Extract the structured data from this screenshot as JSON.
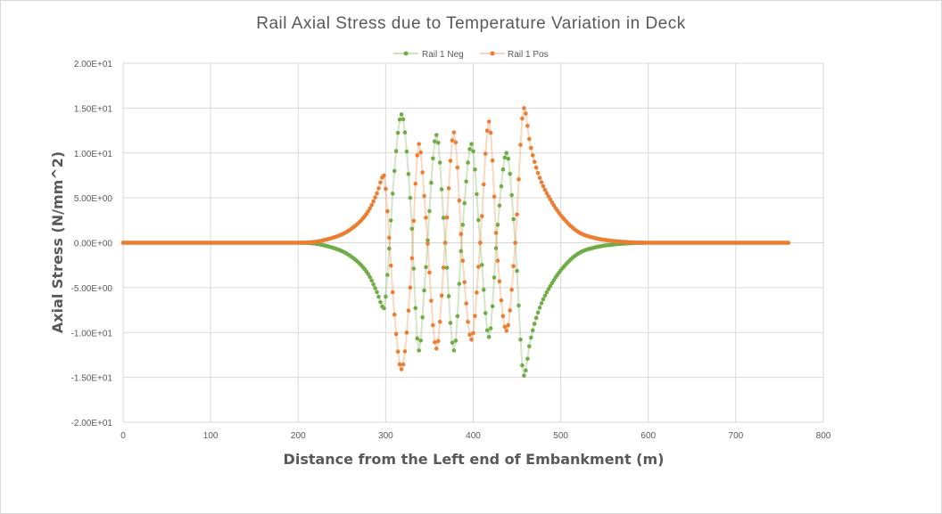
{
  "chart_data": {
    "type": "scatter",
    "title": "Rail Axial Stress due to Temperature Variation in Deck",
    "xlabel": "Distance from the Left end of Embankment (m)",
    "ylabel": "Axial Stress (N/mm^2)",
    "xlim": [
      0,
      800
    ],
    "ylim": [
      -20,
      20
    ],
    "x_ticks": [
      0,
      100,
      200,
      300,
      400,
      500,
      600,
      700,
      800
    ],
    "x_tick_labels": [
      "0",
      "100",
      "200",
      "300",
      "400",
      "500",
      "600",
      "700",
      "800"
    ],
    "y_ticks": [
      20,
      15,
      10,
      5,
      0,
      -5,
      -10,
      -15,
      -20
    ],
    "y_tick_labels": [
      "2.00E+01",
      "1.50E+01",
      "1.00E+01",
      "5.00E+00",
      "0.00E+00",
      "-5.00E+00",
      "-1.00E+01",
      "-1.50E+01",
      "-2.00E+01"
    ],
    "grid": true,
    "legend_position": "top",
    "x_range": [
      0,
      760
    ],
    "sample_step": 2,
    "series": [
      {
        "name": "Rail 1 Neg",
        "color": "#70ad47",
        "key_points": [
          [
            0,
            0
          ],
          [
            200,
            0
          ],
          [
            230,
            -0.3
          ],
          [
            260,
            -1.5
          ],
          [
            280,
            -3.5
          ],
          [
            290,
            -5.5
          ],
          [
            298,
            -7.3
          ],
          [
            300,
            -6
          ],
          [
            310,
            8
          ],
          [
            318,
            14.3
          ],
          [
            328,
            5
          ],
          [
            338,
            -12
          ],
          [
            345,
            -4
          ],
          [
            358,
            12
          ],
          [
            368,
            0
          ],
          [
            378,
            -12
          ],
          [
            388,
            2
          ],
          [
            398,
            11
          ],
          [
            408,
            0
          ],
          [
            418,
            -10.5
          ],
          [
            428,
            2
          ],
          [
            438,
            10
          ],
          [
            448,
            0
          ],
          [
            458,
            -14.8
          ],
          [
            465,
            -11
          ],
          [
            475,
            -7.5
          ],
          [
            490,
            -4.5
          ],
          [
            505,
            -2.5
          ],
          [
            520,
            -1.2
          ],
          [
            540,
            -0.5
          ],
          [
            560,
            -0.2
          ],
          [
            580,
            -0.05
          ],
          [
            600,
            0
          ],
          [
            760,
            0
          ]
        ]
      },
      {
        "name": "Rail 1 Pos",
        "color": "#ed7d31",
        "key_points": [
          [
            0,
            0
          ],
          [
            200,
            0
          ],
          [
            230,
            0.3
          ],
          [
            260,
            1.5
          ],
          [
            280,
            3.5
          ],
          [
            290,
            5.5
          ],
          [
            298,
            7.5
          ],
          [
            300,
            6
          ],
          [
            310,
            -8
          ],
          [
            318,
            -14.1
          ],
          [
            328,
            -5
          ],
          [
            338,
            11
          ],
          [
            345,
            4
          ],
          [
            358,
            -11.8
          ],
          [
            368,
            0
          ],
          [
            378,
            12.3
          ],
          [
            388,
            -2
          ],
          [
            398,
            -10.8
          ],
          [
            408,
            0
          ],
          [
            418,
            13.5
          ],
          [
            428,
            -2
          ],
          [
            438,
            -9.8
          ],
          [
            448,
            0
          ],
          [
            458,
            15
          ],
          [
            465,
            11
          ],
          [
            475,
            7.5
          ],
          [
            490,
            4.5
          ],
          [
            505,
            2.5
          ],
          [
            520,
            1.2
          ],
          [
            540,
            0.5
          ],
          [
            560,
            0.2
          ],
          [
            580,
            0.05
          ],
          [
            600,
            0
          ],
          [
            760,
            0
          ]
        ]
      }
    ]
  }
}
